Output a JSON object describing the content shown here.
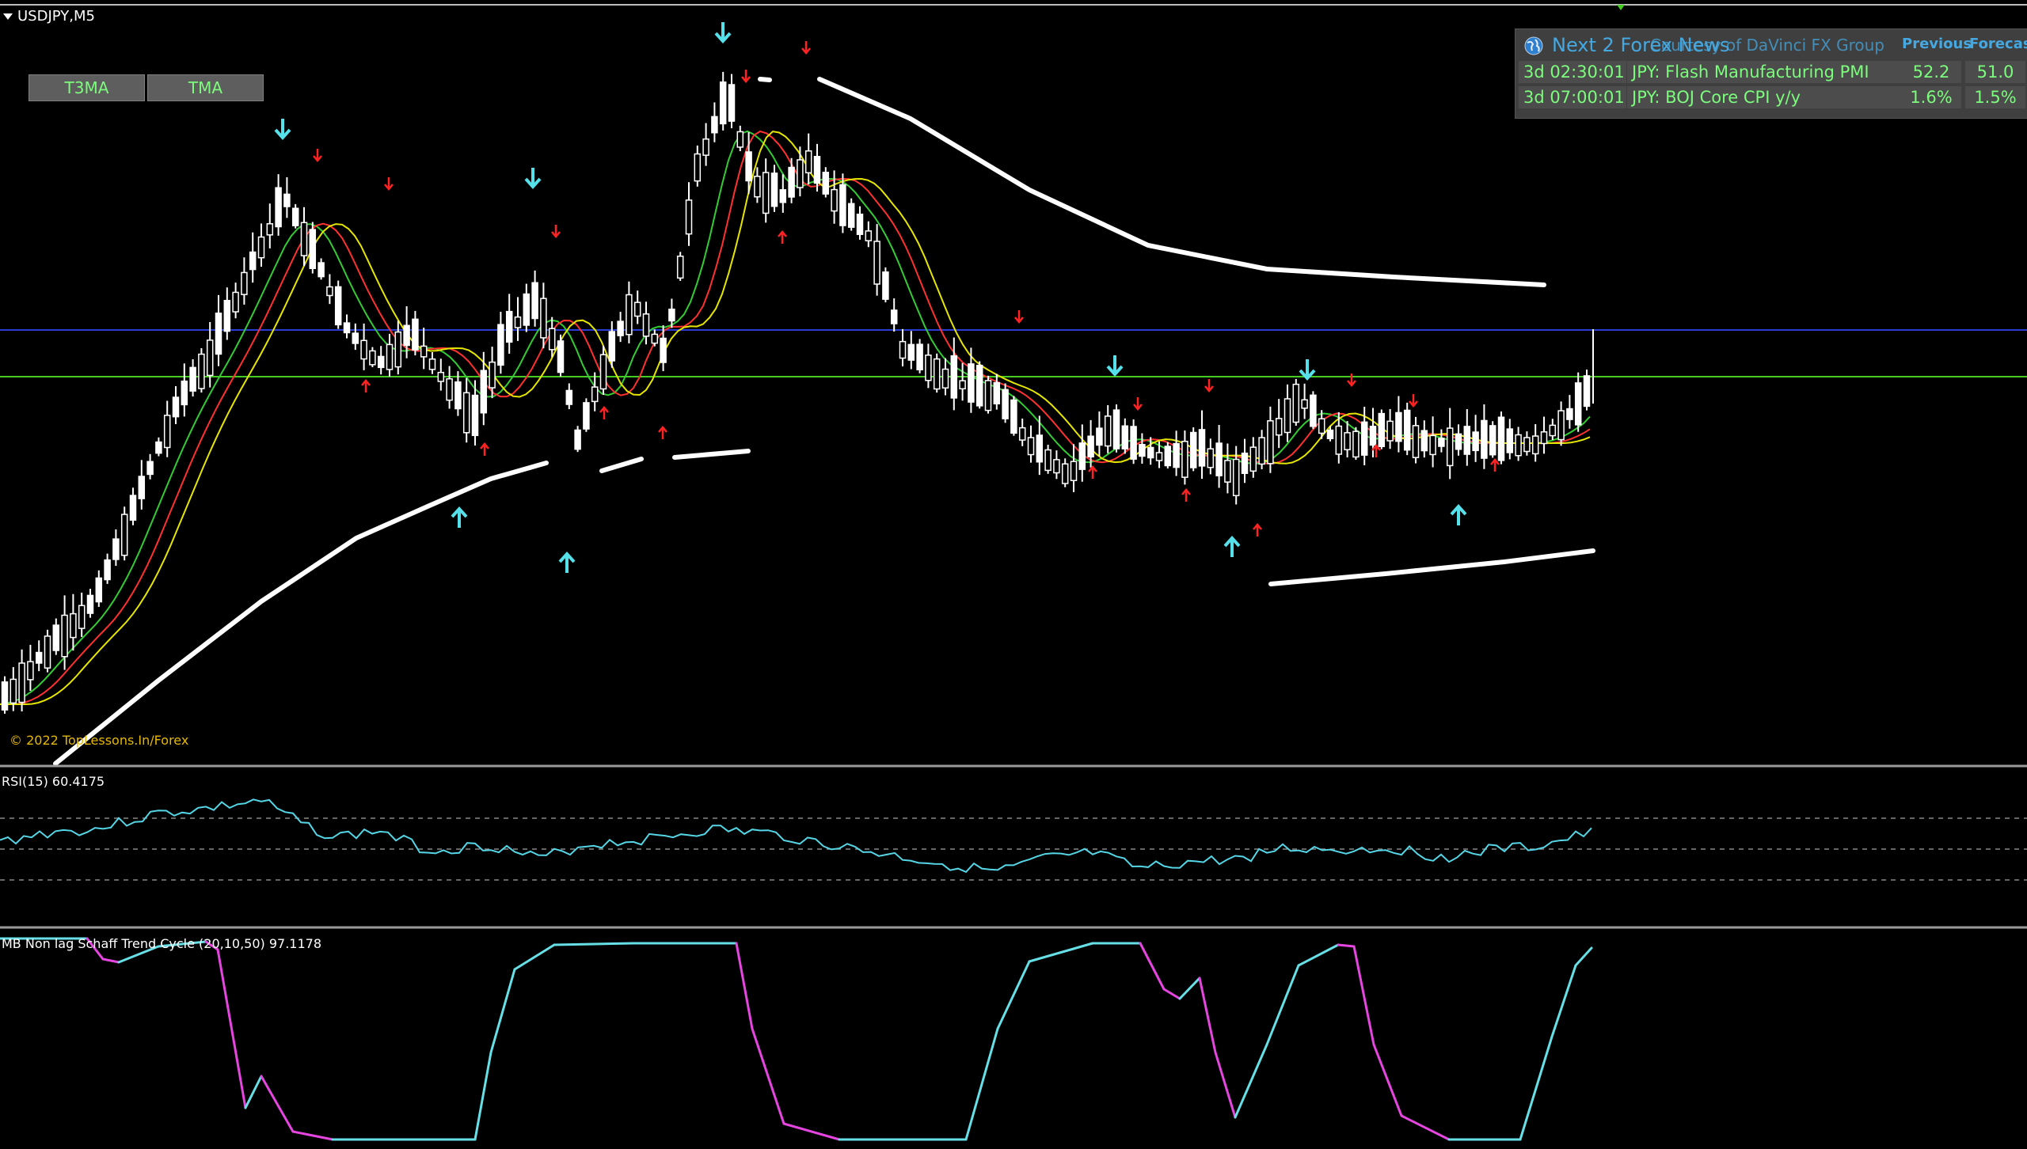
{
  "chart": {
    "symbol_timeframe": "USDJPY,M5",
    "copyright": "© 2022 TopLessons.In/Forex"
  },
  "toolbar": {
    "buttons": [
      "T3MA",
      "TMA"
    ]
  },
  "news_panel": {
    "title": "Next 2 Forex News",
    "subtitle": "Courtesy of DaVinci FX Group",
    "col_previous": "Previous",
    "col_forecast": "Forecast",
    "rows": [
      {
        "time": "3d 02:30:01",
        "event": "JPY: Flash Manufacturing PMI",
        "previous": "52.2",
        "forecast": "51.0"
      },
      {
        "time": "3d 07:00:01",
        "event": "JPY: BOJ Core CPI y/y",
        "previous": "1.6%",
        "forecast": "1.5%"
      }
    ]
  },
  "rsi": {
    "label": "RSI(15) 60.4175",
    "color": "#55d6e6"
  },
  "stc": {
    "label": "MB Non lag Schaff Trend Cycle  (20,10,50) 97.1178",
    "up_color": "#66e0e6",
    "down_color": "#e645e0"
  },
  "colors": {
    "background": "#000000",
    "bull_candle": "#ffffff",
    "ma_fast": "#33cc33",
    "ma_mid": "#ff3030",
    "ma_slow": "#e6e600",
    "long_ma": "#ffffff",
    "hline_blue": "#2a3cd6",
    "hline_green": "#44cc22",
    "arrow_down_big": "#55e0ea",
    "arrow_small": "#ff2222"
  }
}
